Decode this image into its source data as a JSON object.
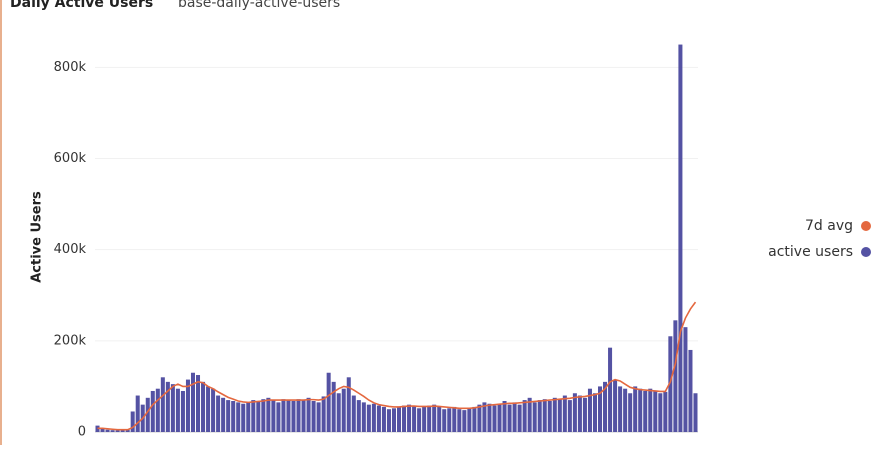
{
  "chart_data": {
    "type": "bar-line",
    "title": "Daily Active Users",
    "subtitle": "base-daily-active-users",
    "y_label": "Active Users",
    "ylim": [
      0,
      860000
    ],
    "yticks": [
      {
        "value": 0,
        "label": "0"
      },
      {
        "value": 200000,
        "label": "200k"
      },
      {
        "value": 400000,
        "label": "400k"
      },
      {
        "value": 600000,
        "label": "600k"
      },
      {
        "value": 800000,
        "label": "800k"
      }
    ],
    "grid": true,
    "legend": "right",
    "series": [
      {
        "name": "7d avg",
        "kind": "line",
        "color": "#e4683f",
        "values": [
          8000,
          8000,
          7000,
          6000,
          5000,
          5000,
          5000,
          10000,
          20000,
          30000,
          45000,
          60000,
          70000,
          80000,
          90000,
          100000,
          105000,
          100000,
          100000,
          105000,
          110000,
          108000,
          100000,
          95000,
          88000,
          82000,
          76000,
          72000,
          68000,
          66000,
          65000,
          66000,
          67000,
          68000,
          70000,
          70000,
          70000,
          70000,
          70000,
          70000,
          70000,
          70000,
          71000,
          71000,
          70000,
          72000,
          80000,
          88000,
          95000,
          100000,
          98000,
          92000,
          85000,
          78000,
          70000,
          64000,
          60000,
          58000,
          56000,
          55000,
          55000,
          56000,
          57000,
          57000,
          56000,
          56000,
          56000,
          57000,
          56000,
          55000,
          54000,
          53000,
          52000,
          52000,
          52000,
          53000,
          55000,
          57000,
          59000,
          60000,
          61000,
          62000,
          63000,
          63000,
          64000,
          65000,
          66000,
          67000,
          68000,
          69000,
          70000,
          71000,
          72000,
          73000,
          74000,
          76000,
          77000,
          78000,
          80000,
          82000,
          85000,
          95000,
          110000,
          115000,
          112000,
          105000,
          98000,
          95000,
          93000,
          92000,
          91000,
          90000,
          89000,
          89000,
          110000,
          150000,
          220000,
          250000,
          270000,
          285000
        ]
      },
      {
        "name": "active users",
        "kind": "bar",
        "color": "#5452a3",
        "values": [
          14000,
          7000,
          5000,
          4000,
          4000,
          4000,
          5000,
          45000,
          80000,
          60000,
          75000,
          90000,
          95000,
          120000,
          110000,
          105000,
          95000,
          90000,
          115000,
          130000,
          125000,
          110000,
          100000,
          95000,
          80000,
          75000,
          70000,
          68000,
          65000,
          62000,
          65000,
          70000,
          68000,
          72000,
          75000,
          70000,
          65000,
          72000,
          70000,
          68000,
          72000,
          70000,
          75000,
          68000,
          65000,
          78000,
          130000,
          110000,
          85000,
          95000,
          120000,
          80000,
          70000,
          65000,
          60000,
          62000,
          58000,
          55000,
          50000,
          52000,
          55000,
          58000,
          60000,
          56000,
          52000,
          55000,
          58000,
          60000,
          55000,
          50000,
          52000,
          55000,
          50000,
          48000,
          52000,
          55000,
          60000,
          65000,
          62000,
          58000,
          62000,
          68000,
          60000,
          65000,
          60000,
          70000,
          75000,
          65000,
          70000,
          72000,
          68000,
          75000,
          72000,
          80000,
          70000,
          85000,
          80000,
          75000,
          95000,
          85000,
          100000,
          110000,
          185000,
          115000,
          100000,
          95000,
          85000,
          100000,
          95000,
          90000,
          95000,
          90000,
          85000,
          88000,
          210000,
          245000,
          850000,
          230000,
          180000,
          85000
        ]
      }
    ]
  }
}
